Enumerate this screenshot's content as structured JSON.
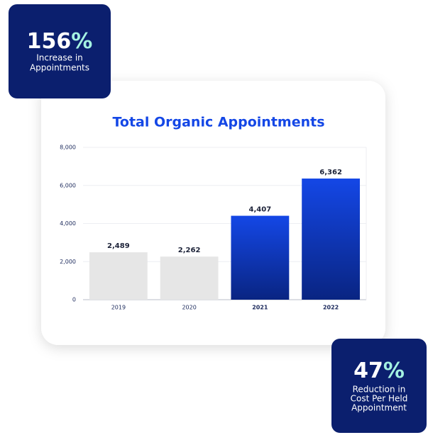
{
  "chart_data": {
    "type": "bar",
    "title": "Total Organic Appointments",
    "categories": [
      "2019",
      "2020",
      "2021",
      "2022"
    ],
    "values": [
      2489,
      2262,
      4407,
      6362
    ],
    "value_labels": [
      "2,489",
      "2,262",
      "4,407",
      "6,362"
    ],
    "colors": [
      "#e6e6e6",
      "#e6e6e6",
      "#1447e6",
      "#1447e6"
    ],
    "emphasis": [
      false,
      false,
      true,
      true
    ],
    "ylim": [
      0,
      8000
    ],
    "yticks": [
      0,
      {
        "value": 2000,
        "label": "2,000"
      },
      {
        "value": 4000,
        "label": "4,000"
      },
      {
        "value": 6000,
        "label": "6,000"
      },
      {
        "value": 8000,
        "label": "8,000"
      }
    ],
    "grid": true
  },
  "badges": [
    {
      "number": "156",
      "symbol": "%",
      "lines": [
        "Increase in",
        "Appointments"
      ]
    },
    {
      "number": "47",
      "symbol": "%",
      "lines": [
        "Reduction in",
        "Cost Per Held",
        "Appointment"
      ]
    }
  ]
}
